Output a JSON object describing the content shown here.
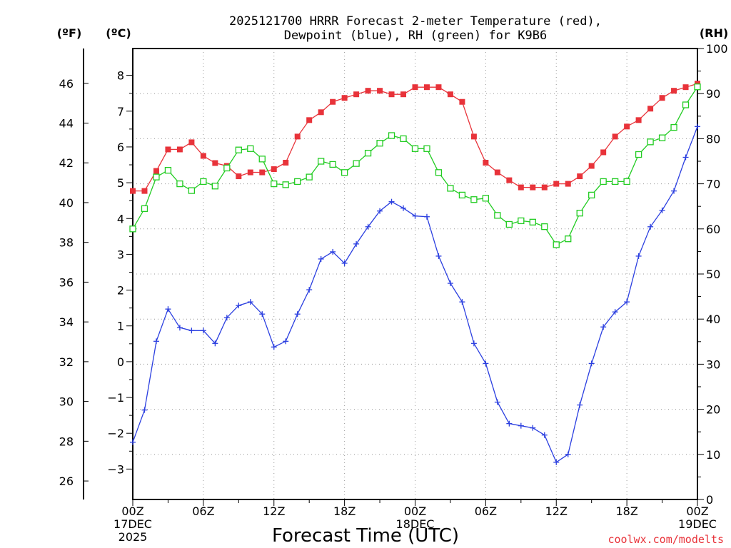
{
  "chart_data": {
    "type": "line",
    "title": "2025121700 HRRR Forecast 2-meter Temperature (red),",
    "subtitle": "Dewpoint (blue), RH (green) for K9B6",
    "xlabel": "Forecast Time (UTC)",
    "credit": "coolwx.com/modelts",
    "units": {
      "fahrenheit": "(ºF)",
      "celsius": "(ºC)",
      "rh": "(RH)"
    },
    "hours_range": [
      0,
      48
    ],
    "celsius_range": [
      -3.85,
      8.75
    ],
    "rh_range": [
      0,
      100
    ],
    "fahrenheit_ticks": [
      "26",
      "28",
      "30",
      "32",
      "34",
      "36",
      "38",
      "40",
      "42",
      "44",
      "46"
    ],
    "fahrenheit_values": [
      26,
      28,
      30,
      32,
      34,
      36,
      38,
      40,
      42,
      44,
      46
    ],
    "celsius_ticks": [
      "−3",
      "−2",
      "−1",
      "0",
      "1",
      "2",
      "3",
      "4",
      "5",
      "6",
      "7",
      "8"
    ],
    "celsius_values": [
      -3,
      -2,
      -1,
      0,
      1,
      2,
      3,
      4,
      5,
      6,
      7,
      8
    ],
    "rh_ticks": [
      "0",
      "10",
      "20",
      "30",
      "40",
      "50",
      "60",
      "70",
      "80",
      "90",
      "100"
    ],
    "rh_values": [
      0,
      10,
      20,
      30,
      40,
      50,
      60,
      70,
      80,
      90,
      100
    ],
    "x_ticks": [
      {
        "hour": 0,
        "lines": [
          "00Z",
          "17DEC",
          "2025"
        ]
      },
      {
        "hour": 6,
        "lines": [
          "06Z"
        ]
      },
      {
        "hour": 12,
        "lines": [
          "12Z"
        ]
      },
      {
        "hour": 18,
        "lines": [
          "18Z"
        ]
      },
      {
        "hour": 24,
        "lines": [
          "00Z",
          "18DEC"
        ]
      },
      {
        "hour": 30,
        "lines": [
          "06Z"
        ]
      },
      {
        "hour": 36,
        "lines": [
          "12Z"
        ]
      },
      {
        "hour": 42,
        "lines": [
          "18Z"
        ]
      },
      {
        "hour": 48,
        "lines": [
          "00Z",
          "19DEC"
        ]
      }
    ],
    "colors": {
      "temperature": "#e8333a",
      "dewpoint": "#2b3fe0",
      "rh": "#22cc22",
      "grid": "#999999"
    },
    "series": [
      {
        "name": "Temperature (°C)",
        "axis": "celsius",
        "marker": "filled-square",
        "values": [
          4.77,
          4.77,
          5.33,
          5.93,
          5.93,
          6.13,
          5.75,
          5.55,
          5.47,
          5.18,
          5.29,
          5.29,
          5.38,
          5.56,
          6.29,
          6.75,
          6.97,
          7.26,
          7.37,
          7.47,
          7.57,
          7.57,
          7.47,
          7.47,
          7.67,
          7.67,
          7.67,
          7.47,
          7.26,
          6.29,
          5.56,
          5.29,
          5.07,
          4.87,
          4.87,
          4.87,
          4.97,
          4.97,
          5.18,
          5.47,
          5.85,
          6.29,
          6.57,
          6.75,
          7.07,
          7.37,
          7.57,
          7.67,
          7.77
        ]
      },
      {
        "name": "Dewpoint (°C)",
        "axis": "celsius",
        "marker": "plus",
        "values": [
          -2.25,
          -1.35,
          0.57,
          1.47,
          0.95,
          0.87,
          0.87,
          0.51,
          1.23,
          1.57,
          1.67,
          1.33,
          0.41,
          0.57,
          1.33,
          2.01,
          2.87,
          3.07,
          2.75,
          3.29,
          3.77,
          4.21,
          4.47,
          4.29,
          4.07,
          4.05,
          2.95,
          2.19,
          1.67,
          0.51,
          -0.05,
          -1.13,
          -1.73,
          -1.79,
          -1.85,
          -2.05,
          -2.81,
          -2.59,
          -1.21,
          -0.05,
          0.97,
          1.39,
          1.67,
          2.95,
          3.77,
          4.23,
          4.77,
          5.71,
          6.57
        ]
      },
      {
        "name": "RH (%)",
        "axis": "rh",
        "marker": "open-square",
        "values": [
          60,
          64.5,
          71.5,
          73,
          70,
          68.5,
          70.5,
          69.5,
          73.5,
          77.5,
          77.8,
          75.5,
          70,
          69.8,
          70.5,
          71.5,
          75,
          74.3,
          72.5,
          74.5,
          76.8,
          79,
          80.7,
          80,
          77.8,
          77.8,
          72.5,
          69,
          67.5,
          66.5,
          66.8,
          63,
          61,
          61.8,
          61.5,
          60.5,
          56.5,
          57.8,
          63.5,
          67.5,
          70.5,
          70.5,
          70.5,
          76.5,
          79.3,
          80.2,
          82.5,
          87.5,
          91.5
        ]
      }
    ]
  }
}
